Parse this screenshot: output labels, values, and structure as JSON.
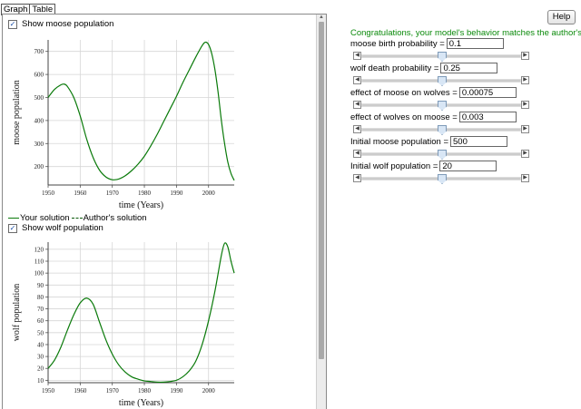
{
  "tabs": [
    "Graph",
    "Table"
  ],
  "help_label": "Help",
  "congrats": "Congratulations, your model's behavior matches the author's!",
  "moose_checkbox_label": "Show moose population",
  "wolf_checkbox_label": "Show wolf population",
  "legend": {
    "yours": "Your solution",
    "authors": "Author's solution"
  },
  "params": [
    {
      "label": "moose birth probability =",
      "value": "0.1",
      "slider": 0.5
    },
    {
      "label": "wolf death probability =",
      "value": "0.25",
      "slider": 0.5
    },
    {
      "label": "effect of moose on wolves =",
      "value": "0.00075",
      "slider": 0.5
    },
    {
      "label": "effect of wolves on moose =",
      "value": "0.003",
      "slider": 0.5
    },
    {
      "label": "Initial moose population =",
      "value": "500",
      "slider": 0.5
    },
    {
      "label": "Initial wolf population =",
      "value": "20",
      "slider": 0.5
    }
  ],
  "chart_data": [
    {
      "type": "line",
      "xlabel": "time (Years)",
      "ylabel": "moose population",
      "xlim": [
        1950,
        2008
      ],
      "ylim": [
        120,
        750
      ],
      "xticks": [
        "1950",
        "1960",
        "1970",
        "1980",
        "1990",
        "2000"
      ],
      "yticks": [
        "200",
        "300",
        "400",
        "500",
        "600",
        "700"
      ],
      "series": [
        {
          "name": "Your solution",
          "color": "#0a7a0a",
          "x": [
            1950,
            1952,
            1954,
            1955,
            1956,
            1958,
            1960,
            1962,
            1964,
            1966,
            1968,
            1970,
            1972,
            1974,
            1976,
            1978,
            1980,
            1982,
            1984,
            1986,
            1988,
            1990,
            1992,
            1994,
            1996,
            1998,
            1999,
            2000,
            2001,
            2002,
            2003,
            2004,
            2005,
            2006,
            2007,
            2008
          ],
          "y": [
            500,
            535,
            555,
            558,
            548,
            500,
            420,
            320,
            240,
            185,
            155,
            143,
            146,
            160,
            182,
            210,
            245,
            290,
            340,
            395,
            450,
            505,
            565,
            620,
            675,
            725,
            740,
            730,
            690,
            620,
            520,
            400,
            300,
            220,
            170,
            140
          ]
        }
      ]
    },
    {
      "type": "line",
      "xlabel": "time (Years)",
      "ylabel": "wolf population",
      "xlim": [
        1950,
        2008
      ],
      "ylim": [
        8,
        126
      ],
      "xticks": [
        "1950",
        "1960",
        "1970",
        "1980",
        "1990",
        "2000"
      ],
      "yticks": [
        "10",
        "20",
        "30",
        "40",
        "50",
        "60",
        "70",
        "80",
        "90",
        "100",
        "110",
        "120"
      ],
      "series": [
        {
          "name": "Your solution",
          "color": "#0a7a0a",
          "x": [
            1950,
            1952,
            1954,
            1956,
            1958,
            1960,
            1962,
            1964,
            1966,
            1968,
            1970,
            1972,
            1974,
            1976,
            1978,
            1980,
            1982,
            1984,
            1986,
            1988,
            1990,
            1992,
            1994,
            1996,
            1998,
            2000,
            2002,
            2004,
            2005,
            2006,
            2007,
            2008
          ],
          "y": [
            20,
            27,
            38,
            52,
            65,
            75,
            79,
            74,
            59,
            44,
            32,
            23,
            17,
            13,
            11,
            9.5,
            9,
            8.5,
            8.5,
            9,
            10,
            13,
            18,
            26,
            40,
            60,
            85,
            115,
            125,
            122,
            110,
            100
          ]
        }
      ]
    }
  ]
}
